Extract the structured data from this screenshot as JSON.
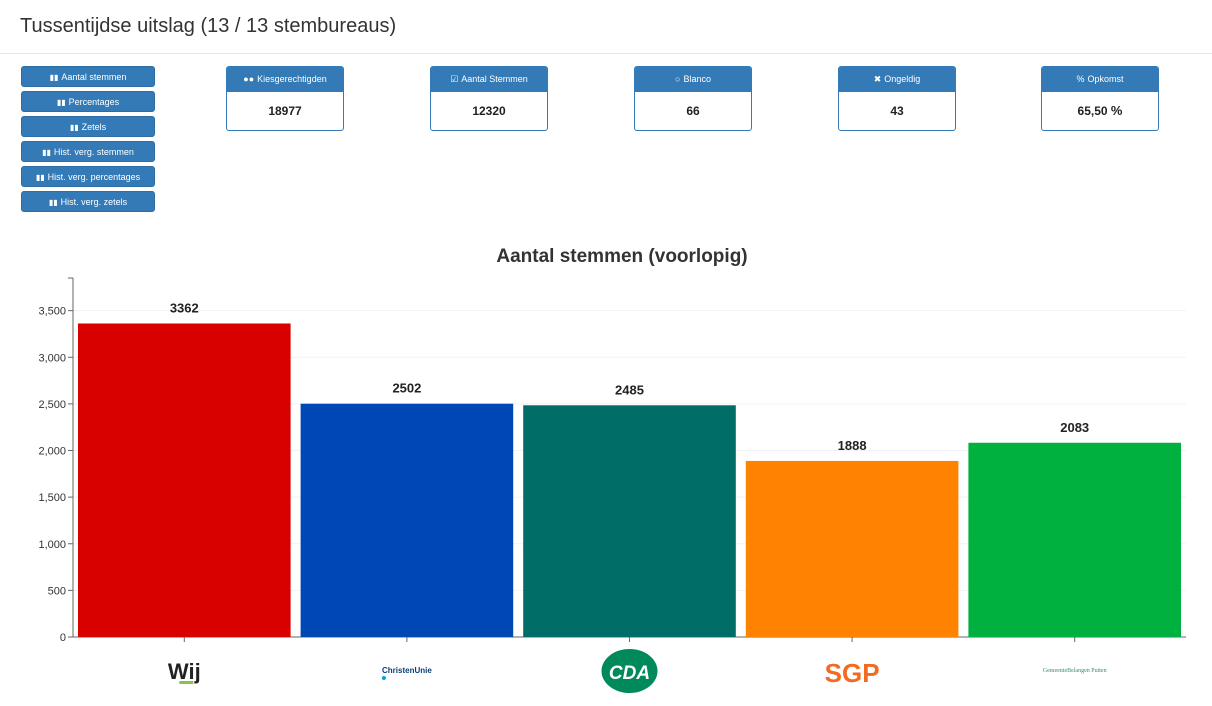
{
  "header": {
    "title": "Tussentijdse uitslag (13 / 13 stembureaus)"
  },
  "nav": {
    "icon": "bar-chart-icon",
    "items": [
      {
        "label": "Aantal stemmen"
      },
      {
        "label": "Percentages"
      },
      {
        "label": "Zetels"
      },
      {
        "label": "Hist. verg. stemmen"
      },
      {
        "label": "Hist. verg. percentages"
      },
      {
        "label": "Hist. verg. zetels"
      }
    ]
  },
  "stats": {
    "kiesgerechtigden": {
      "label": "Kiesgerechtigden",
      "value": "18977",
      "icon": "users-icon"
    },
    "aantal_stemmen": {
      "label": "Aantal Stemmen",
      "value": "12320",
      "icon": "check-square-icon"
    },
    "blanco": {
      "label": "Blanco",
      "value": "66",
      "icon": "circle-icon"
    },
    "ongeldig": {
      "label": "Ongeldig",
      "value": "43",
      "icon": "close-icon"
    },
    "opkomst": {
      "label": "Opkomst",
      "value": "65,50",
      "unit": "%",
      "icon": "percent-icon"
    }
  },
  "chart_data": {
    "type": "bar",
    "title": "Aantal stemmen (voorlopig)",
    "xlabel": "",
    "ylabel": "",
    "ylim": [
      0,
      3850
    ],
    "yticks": [
      0,
      500,
      1000,
      1500,
      2000,
      2500,
      3000,
      3500
    ],
    "ytick_labels": [
      "0",
      "500",
      "1,000",
      "1,500",
      "2,000",
      "2,500",
      "3,000",
      "3,500"
    ],
    "grid": true,
    "legend": "none",
    "categories": [
      "Wij",
      "ChristenUnie",
      "CDA",
      "SGP",
      "GemeenteBelangen Putten"
    ],
    "category_logo_text": [
      "Wij",
      "ChristenUnie",
      "CDA",
      "SGP",
      "GemeenteBelangen Putten"
    ],
    "values": [
      3362,
      2502,
      2485,
      1888,
      2083
    ],
    "data_labels": [
      "3362",
      "2502",
      "2485",
      "1888",
      "2083"
    ],
    "colors": [
      "#d90000",
      "#0047b6",
      "#006e66",
      "#ff8200",
      "#00b140"
    ]
  }
}
